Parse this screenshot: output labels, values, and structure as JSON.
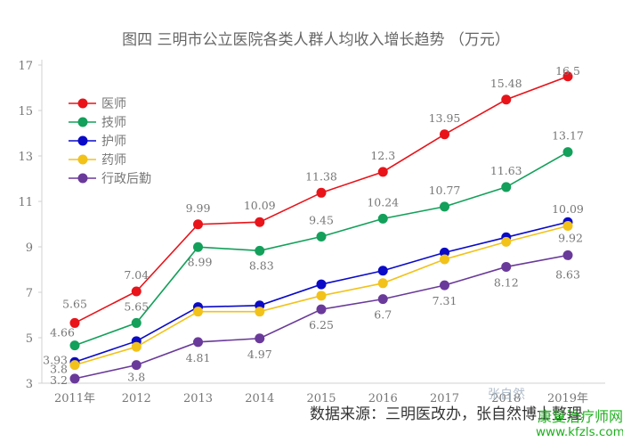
{
  "chart_data": {
    "type": "line",
    "title": "图四 三明市公立医院各类人群人均收入增长趋势 （万元）",
    "xlabel": "",
    "ylabel": "",
    "x": [
      "2011年",
      "2012",
      "2013",
      "2014",
      "2015",
      "2016",
      "2017",
      "2018",
      "2019年"
    ],
    "ylim": [
      3,
      17
    ],
    "yticks": [
      3,
      5,
      7,
      9,
      11,
      13,
      15,
      17
    ],
    "grid": false,
    "legend_position": "top-left",
    "series": [
      {
        "name": "医师",
        "color": "#e8141a",
        "values": [
          5.65,
          7.04,
          9.99,
          10.09,
          11.38,
          12.3,
          13.95,
          15.48,
          16.5
        ],
        "labels": [
          "5.65",
          "7.04",
          "9.99",
          "10.09",
          "11.38",
          "12.3",
          "13.95",
          "15.48",
          "16.5"
        ]
      },
      {
        "name": "技师",
        "color": "#13a05a",
        "values": [
          4.66,
          5.65,
          8.99,
          8.83,
          9.45,
          10.24,
          10.77,
          11.63,
          13.17
        ],
        "labels": [
          "4.66",
          "5.65",
          "8.99",
          "8.83",
          "9.45",
          "10.24",
          "10.77",
          "11.63",
          "13.17"
        ]
      },
      {
        "name": "护师",
        "color": "#0a0ac8",
        "values": [
          3.93,
          4.85,
          6.35,
          6.42,
          7.35,
          7.95,
          8.75,
          9.42,
          10.09
        ],
        "labels": [
          "3.93",
          "",
          "",
          "",
          "",
          "",
          "",
          "",
          "10.09"
        ]
      },
      {
        "name": "药师",
        "color": "#f2c21a",
        "values": [
          3.8,
          4.6,
          6.15,
          6.15,
          6.85,
          7.4,
          8.45,
          9.22,
          9.92
        ],
        "labels": [
          "3.8",
          "",
          "",
          "",
          "",
          "",
          "",
          "",
          "9.92"
        ]
      },
      {
        "name": "行政后勤",
        "color": "#6a3a9a",
        "values": [
          3.2,
          3.8,
          4.81,
          4.97,
          6.25,
          6.7,
          7.31,
          8.12,
          8.63
        ],
        "labels": [
          "3.2",
          "3.8",
          "4.81",
          "4.97",
          "6.25",
          "6.7",
          "7.31",
          "8.12",
          "8.63"
        ]
      }
    ]
  },
  "footer": {
    "source": "数据来源：三明医改办，张自然博士整理",
    "stamp": "张自然"
  },
  "watermark": {
    "site_name": "康复治疗师网",
    "url": "www.kfzls.com"
  }
}
